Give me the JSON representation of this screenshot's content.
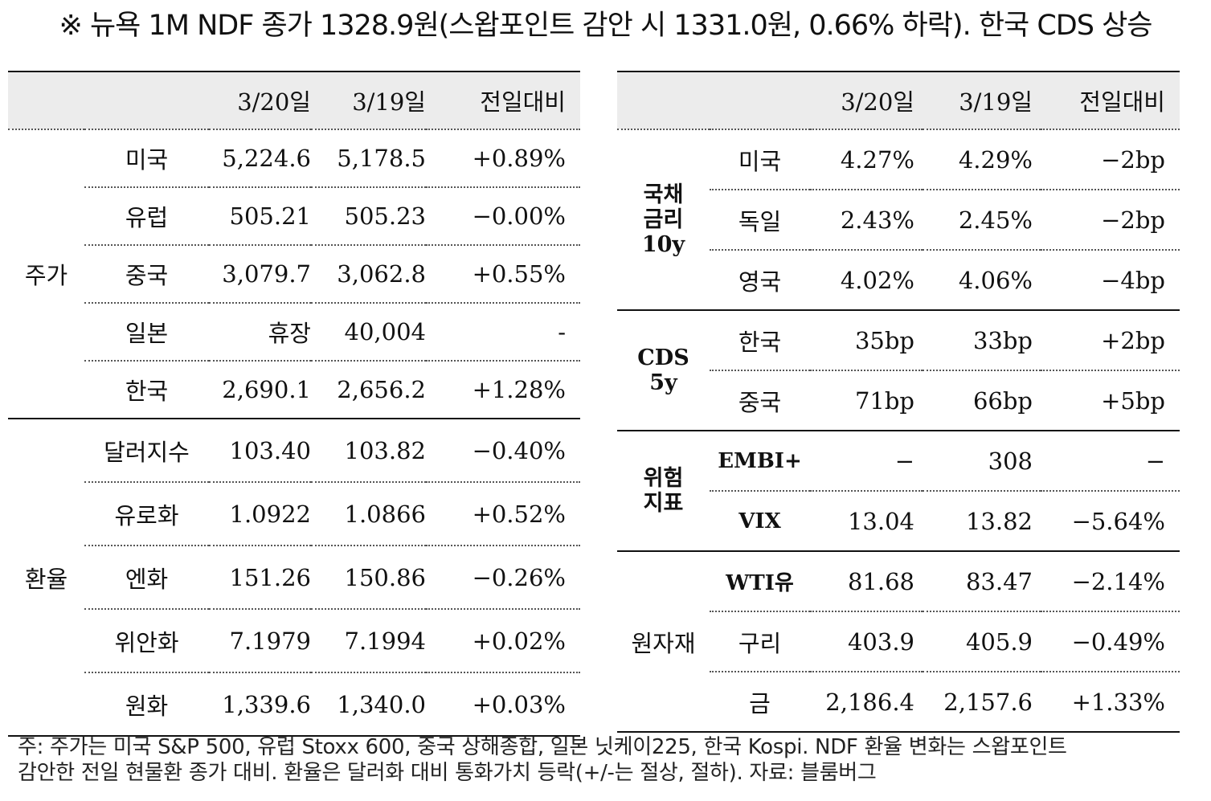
{
  "title": "※ 뉴욕 1M NDF 종가 1328.9원(스왑포인트 감안 시 1331.0원, 0.66% 하락). 한국 CDS 상승",
  "left_table": {
    "headers": [
      "",
      "",
      "3/20일",
      "3/19일",
      "전일대비"
    ],
    "groups": [
      {
        "category": "주가",
        "rows": [
          {
            "name": "미국",
            "d20": "5,224.6",
            "d19": "5,178.5",
            "chg": "+0.89%"
          },
          {
            "name": "유럽",
            "d20": "505.21",
            "d19": "505.23",
            "chg": "−0.00%"
          },
          {
            "name": "중국",
            "d20": "3,079.7",
            "d19": "3,062.8",
            "chg": "+0.55%"
          },
          {
            "name": "일본",
            "d20": "휴장",
            "d19": "40,004",
            "chg": "-"
          },
          {
            "name": "한국",
            "d20": "2,690.1",
            "d19": "2,656.2",
            "chg": "+1.28%"
          }
        ]
      },
      {
        "category": "환율",
        "rows": [
          {
            "name": "달러지수",
            "d20": "103.40",
            "d19": "103.82",
            "chg": "−0.40%"
          },
          {
            "name": "유로화",
            "d20": "1.0922",
            "d19": "1.0866",
            "chg": "+0.52%"
          },
          {
            "name": "엔화",
            "d20": "151.26",
            "d19": "150.86",
            "chg": "−0.26%"
          },
          {
            "name": "위안화",
            "d20": "7.1979",
            "d19": "7.1994",
            "chg": "+0.02%"
          },
          {
            "name": "원화",
            "d20": "1,339.6",
            "d19": "1,340.0",
            "chg": "+0.03%"
          }
        ]
      }
    ]
  },
  "right_table": {
    "headers": [
      "",
      "",
      "3/20일",
      "3/19일",
      "전일대비"
    ],
    "groups": [
      {
        "category": "국채\n금리\n10y",
        "rows": [
          {
            "name": "미국",
            "d20": "4.27%",
            "d19": "4.29%",
            "chg": "−2bp"
          },
          {
            "name": "독일",
            "d20": "2.43%",
            "d19": "2.45%",
            "chg": "−2bp"
          },
          {
            "name": "영국",
            "d20": "4.02%",
            "d19": "4.06%",
            "chg": "−4bp"
          }
        ]
      },
      {
        "category": "CDS\n5y",
        "rows": [
          {
            "name": "한국",
            "d20": "35bp",
            "d19": "33bp",
            "chg": "+2bp"
          },
          {
            "name": "중국",
            "d20": "71bp",
            "d19": "66bp",
            "chg": "+5bp"
          }
        ]
      },
      {
        "category": "위험\n지표",
        "rows": [
          {
            "name": "EMBI+",
            "d20": "−",
            "d19": "308",
            "chg": "−"
          },
          {
            "name": "VIX",
            "d20": "13.04",
            "d19": "13.82",
            "chg": "−5.64%"
          }
        ]
      },
      {
        "category": "원자재",
        "rows": [
          {
            "name": "WTI유",
            "d20": "81.68",
            "d19": "83.47",
            "chg": "−2.14%"
          },
          {
            "name": "구리",
            "d20": "403.9",
            "d19": "405.9",
            "chg": "−0.49%"
          },
          {
            "name": "금",
            "d20": "2,186.4",
            "d19": "2,157.6",
            "chg": "+1.33%"
          }
        ]
      }
    ]
  },
  "note": {
    "line1": "주: 주가는 미국 S&P 500, 유럽 Stoxx 600, 중국 상해종합, 일본 닛케이225, 한국 Kospi. NDF 환율 변화는 스왑포인트",
    "line2": "감안한 전일 현물환 종가 대비. 환율은 달러화 대비 통화가치 등락(+/-는 절상, 절하). 자료: 블룸버그"
  }
}
